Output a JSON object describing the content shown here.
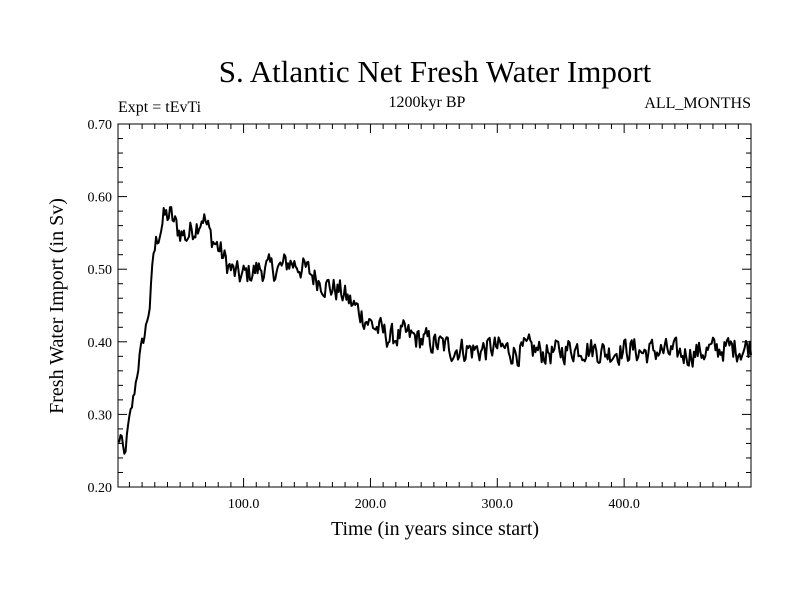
{
  "chart_data": {
    "type": "line",
    "title": "S. Atlantic Net Fresh Water Import",
    "subtitle_left": "Expt = tEvTi",
    "subtitle_center": "1200kyr BP",
    "subtitle_right": "ALL_MONTHS",
    "xlabel": "Time (in years since start)",
    "ylabel": "Fresh Water Import (in Sv)",
    "xlim": [
      1,
      500
    ],
    "ylim": [
      0.2,
      0.7
    ],
    "x_ticks": [
      100,
      200,
      300,
      400
    ],
    "x_tick_labels": [
      "100.0",
      "200.0",
      "300.0",
      "400.0"
    ],
    "y_ticks": [
      0.2,
      0.3,
      0.4,
      0.5,
      0.6,
      0.7
    ],
    "y_tick_labels": [
      "0.20",
      "0.30",
      "0.40",
      "0.50",
      "0.60",
      "0.70"
    ],
    "series": [
      {
        "name": "Fresh Water Import",
        "color": "#000000",
        "keypoints": [
          [
            1,
            0.26
          ],
          [
            3,
            0.27
          ],
          [
            6,
            0.24
          ],
          [
            9,
            0.28
          ],
          [
            13,
            0.32
          ],
          [
            18,
            0.38
          ],
          [
            22,
            0.41
          ],
          [
            26,
            0.45
          ],
          [
            29,
            0.52
          ],
          [
            33,
            0.55
          ],
          [
            37,
            0.57
          ],
          [
            42,
            0.575
          ],
          [
            48,
            0.555
          ],
          [
            55,
            0.545
          ],
          [
            62,
            0.56
          ],
          [
            68,
            0.575
          ],
          [
            74,
            0.545
          ],
          [
            80,
            0.53
          ],
          [
            86,
            0.51
          ],
          [
            92,
            0.495
          ],
          [
            98,
            0.49
          ],
          [
            105,
            0.495
          ],
          [
            112,
            0.5
          ],
          [
            120,
            0.5
          ],
          [
            128,
            0.5
          ],
          [
            136,
            0.51
          ],
          [
            144,
            0.505
          ],
          [
            152,
            0.495
          ],
          [
            160,
            0.485
          ],
          [
            168,
            0.475
          ],
          [
            176,
            0.47
          ],
          [
            184,
            0.455
          ],
          [
            192,
            0.44
          ],
          [
            200,
            0.425
          ],
          [
            208,
            0.415
          ],
          [
            216,
            0.405
          ],
          [
            226,
            0.41
          ],
          [
            236,
            0.405
          ],
          [
            246,
            0.4
          ],
          [
            256,
            0.395
          ],
          [
            266,
            0.39
          ],
          [
            276,
            0.39
          ],
          [
            286,
            0.388
          ],
          [
            296,
            0.392
          ],
          [
            306,
            0.39
          ],
          [
            316,
            0.385
          ],
          [
            326,
            0.39
          ],
          [
            336,
            0.385
          ],
          [
            346,
            0.385
          ],
          [
            356,
            0.39
          ],
          [
            366,
            0.392
          ],
          [
            376,
            0.39
          ],
          [
            386,
            0.385
          ],
          [
            396,
            0.388
          ],
          [
            406,
            0.39
          ],
          [
            416,
            0.385
          ],
          [
            426,
            0.388
          ],
          [
            436,
            0.385
          ],
          [
            446,
            0.383
          ],
          [
            456,
            0.385
          ],
          [
            466,
            0.388
          ],
          [
            476,
            0.39
          ],
          [
            486,
            0.392
          ],
          [
            494,
            0.39
          ],
          [
            500,
            0.395
          ]
        ],
        "noise_amplitude": 0.016
      }
    ]
  }
}
